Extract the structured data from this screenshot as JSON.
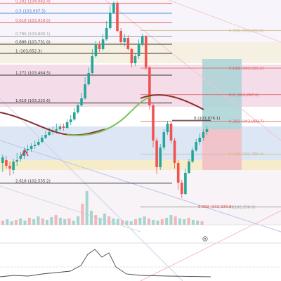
{
  "fib_left": [
    {
      "label": "0.382 (104,082.4)",
      "price": 104082.4,
      "color": "#e05a5a"
    },
    {
      "label": "0.5 (103,997.5)",
      "price": 103997.5,
      "color": "#3f7fd8"
    },
    {
      "label": "0.618 (103,916.0)",
      "price": 103916.0,
      "color": "#e05a5a"
    },
    {
      "label": "0.786 (103,800.1)",
      "price": 103800.1,
      "color": "#9a9a9a"
    },
    {
      "label": "0.886 (103,731.0)",
      "price": 103731.0,
      "color": "#333333"
    },
    {
      "label": "1 (103,652.3)",
      "price": 103652.3,
      "color": "#333333"
    },
    {
      "label": "1.272 (103,464.5)",
      "price": 103464.5,
      "color": "#333333"
    },
    {
      "label": "1.618 (103,225.6)",
      "price": 103225.6,
      "color": "#333333"
    },
    {
      "label": "2.618 (102,535.2)",
      "price": 102535.2,
      "color": "#333333"
    }
  ],
  "fib_right": [
    {
      "label": "0.786 (103,850.0)",
      "price": 103850.0,
      "color": "#c9b887"
    },
    {
      "label": "0.618 (103,525.2)",
      "price": 103525.2,
      "color": "#e05a5a"
    },
    {
      "label": "0.5 (103,297.0)",
      "price": 103297.0,
      "color": "#e05a5a"
    },
    {
      "label": "0.382 (103,068.7)",
      "price": 103068.7,
      "color": "#e05a5a"
    },
    {
      "label": "0.236 (102,786.4)",
      "price": 102786.4,
      "color": "#c9b887"
    },
    {
      "label": "0 (102,330.0)",
      "price": 102330.0,
      "color": "#999999"
    }
  ],
  "price_marker": {
    "label": "0 (103,076.1)",
    "price": 103076.1
  },
  "lower_fib": {
    "label": "0.382 (102,329.6)",
    "price": 102329.6
  },
  "colors": {
    "up": "#26a69a",
    "down": "#ef5350",
    "ma_red": "#8b2d2d",
    "ma_green": "#7cc35a",
    "tp_zone": "#a9d3d6",
    "sl_zone": "#f3c0c6",
    "band_blue": "#dde6f5",
    "band_pink": "#f4dde8",
    "band_yellow": "#f6ecc9"
  },
  "icons": {
    "eye": "eye-icon"
  }
}
